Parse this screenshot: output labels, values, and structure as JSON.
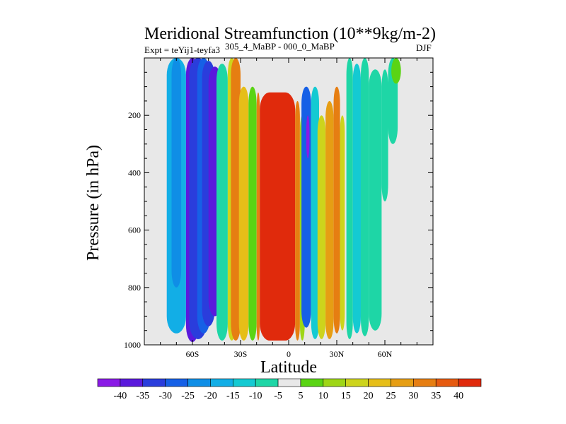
{
  "chart_data": {
    "type": "contour",
    "title": "Meridional Streamfunction (10**9kg/m-2)",
    "subtitle_left": "Expt = teYij1-teyfa3",
    "subtitle_center": "305_4_MaBP - 000_0_MaBP",
    "season": "DJF",
    "xlabel": "Latitude",
    "ylabel": "Pressure (in hPa)",
    "xlim": [
      -90,
      90
    ],
    "ylim": [
      0,
      1000
    ],
    "x_ticks": [
      {
        "value": -60,
        "label": "60S"
      },
      {
        "value": -30,
        "label": "30S"
      },
      {
        "value": 0,
        "label": "0"
      },
      {
        "value": 30,
        "label": "30N"
      },
      {
        "value": 60,
        "label": "60N"
      }
    ],
    "y_ticks": [
      {
        "value": 200,
        "label": "200"
      },
      {
        "value": 400,
        "label": "400"
      },
      {
        "value": 600,
        "label": "600"
      },
      {
        "value": 800,
        "label": "800"
      },
      {
        "value": 1000,
        "label": "1000"
      }
    ],
    "colorbar": {
      "labels": [
        "-40",
        "-35",
        "-30",
        "-25",
        "-20",
        "-15",
        "-10",
        "-5",
        "5",
        "10",
        "15",
        "20",
        "25",
        "30",
        "35",
        "40"
      ],
      "colors": [
        "#8a1ae6",
        "#5a19dc",
        "#2a3ddc",
        "#1660e6",
        "#0f8ee6",
        "#12aee6",
        "#14cad2",
        "#1ed6a6",
        "#e8e8e8",
        "#5ad414",
        "#9ed616",
        "#cdd41c",
        "#e6be18",
        "#e69e14",
        "#e67e12",
        "#e65a10",
        "#e02a0c"
      ]
    },
    "bands": [
      {
        "lat_min": -76,
        "lat_max": -64,
        "p_top": 0,
        "p_bot": 960,
        "level": 5
      },
      {
        "lat_min": -73,
        "lat_max": -67,
        "p_top": 0,
        "p_bot": 800,
        "level": 4
      },
      {
        "lat_min": -64,
        "lat_max": -56,
        "p_top": 0,
        "p_bot": 990,
        "level": 1
      },
      {
        "lat_min": -62,
        "lat_max": -51,
        "p_top": 0,
        "p_bot": 980,
        "level": 2
      },
      {
        "lat_min": -57,
        "lat_max": -49,
        "p_top": 0,
        "p_bot": 960,
        "level": 3
      },
      {
        "lat_min": -54,
        "lat_max": -46,
        "p_top": 10,
        "p_bot": 935,
        "level": 2
      },
      {
        "lat_min": -50,
        "lat_max": -42,
        "p_top": 30,
        "p_bot": 900,
        "level": 1
      },
      {
        "lat_min": -45,
        "lat_max": -38,
        "p_top": 20,
        "p_bot": 985,
        "level": 7
      },
      {
        "lat_min": -38,
        "lat_max": -33,
        "p_top": 0,
        "p_bot": 985,
        "level": 11
      },
      {
        "lat_min": -36,
        "lat_max": -30,
        "p_top": 0,
        "p_bot": 985,
        "level": 14
      },
      {
        "lat_min": -31,
        "lat_max": -25,
        "p_top": 100,
        "p_bot": 985,
        "level": 12
      },
      {
        "lat_min": -25,
        "lat_max": -20,
        "p_top": 100,
        "p_bot": 985,
        "level": 9
      },
      {
        "lat_min": -20,
        "lat_max": -18,
        "p_top": 120,
        "p_bot": 985,
        "level": 14
      },
      {
        "lat_min": -18,
        "lat_max": 4,
        "p_top": 120,
        "p_bot": 985,
        "level": 16
      },
      {
        "lat_min": 4,
        "lat_max": 7,
        "p_top": 150,
        "p_bot": 985,
        "level": 14
      },
      {
        "lat_min": 7,
        "lat_max": 10,
        "p_top": 200,
        "p_bot": 985,
        "level": 10
      },
      {
        "lat_min": 8,
        "lat_max": 14,
        "p_top": 100,
        "p_bot": 940,
        "level": 3
      },
      {
        "lat_min": 11,
        "lat_max": 13,
        "p_top": 200,
        "p_bot": 350,
        "level": 0
      },
      {
        "lat_min": 14,
        "lat_max": 19,
        "p_top": 100,
        "p_bot": 980,
        "level": 6
      },
      {
        "lat_min": 18,
        "lat_max": 23,
        "p_top": 200,
        "p_bot": 980,
        "level": 11
      },
      {
        "lat_min": 23,
        "lat_max": 28,
        "p_top": 150,
        "p_bot": 980,
        "level": 13
      },
      {
        "lat_min": 28,
        "lat_max": 32,
        "p_top": 100,
        "p_bot": 960,
        "level": 14
      },
      {
        "lat_min": 32,
        "lat_max": 35,
        "p_top": 200,
        "p_bot": 950,
        "level": 11
      },
      {
        "lat_min": 36,
        "lat_max": 40,
        "p_top": 0,
        "p_bot": 980,
        "level": 7
      },
      {
        "lat_min": 40,
        "lat_max": 45,
        "p_top": 20,
        "p_bot": 960,
        "level": 6
      },
      {
        "lat_min": 45,
        "lat_max": 50,
        "p_top": 0,
        "p_bot": 970,
        "level": 7
      },
      {
        "lat_min": 50,
        "lat_max": 58,
        "p_top": 40,
        "p_bot": 950,
        "level": 7
      },
      {
        "lat_min": 58,
        "lat_max": 62,
        "p_top": 40,
        "p_bot": 500,
        "level": 7
      },
      {
        "lat_min": 62,
        "lat_max": 68,
        "p_top": 0,
        "p_bot": 300,
        "level": 7
      },
      {
        "lat_min": 64,
        "lat_max": 70,
        "p_top": 0,
        "p_bot": 90,
        "level": 9
      }
    ]
  }
}
